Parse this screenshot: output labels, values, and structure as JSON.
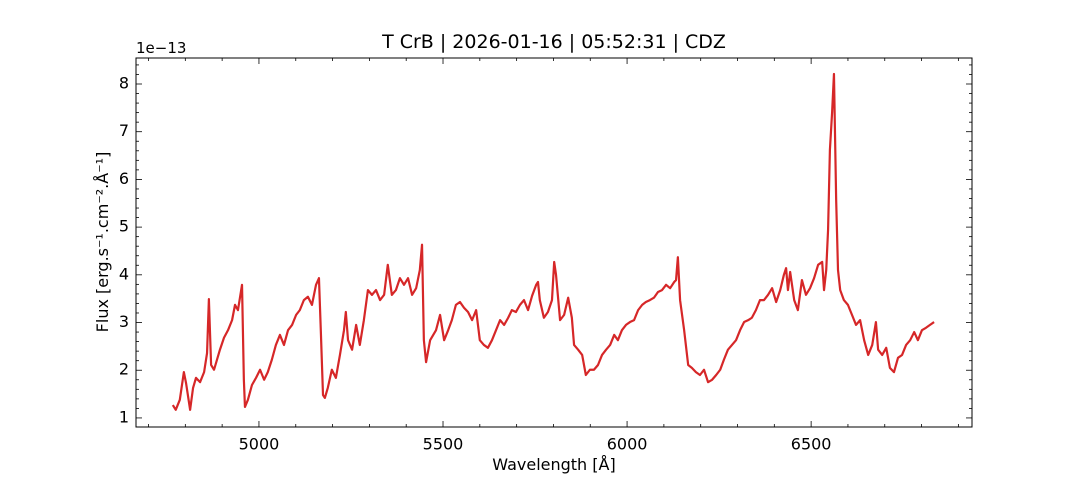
{
  "chart_data": {
    "type": "line",
    "title": "T CrB | 2026-01-16 | 05:52:31 | CDZ",
    "x_label": "Wavelength [Å]",
    "y_label": "Flux [erg.s⁻¹.cm⁻².Å⁻¹]",
    "y_offset_label": "1e−13",
    "xlim": [
      4666,
      6937
    ],
    "ylim": [
      0.81,
      8.545
    ],
    "xticks": [
      5000,
      5500,
      6000,
      6500
    ],
    "yticks": [
      1,
      2,
      3,
      4,
      5,
      6,
      7,
      8
    ],
    "xticks_minor": [
      4700,
      4800,
      4900,
      5100,
      5200,
      5300,
      5400,
      5600,
      5700,
      5800,
      5900,
      6100,
      6200,
      6300,
      6400,
      6600,
      6700,
      6800,
      6900
    ],
    "yticks_minor": [
      1.2,
      1.4,
      1.6,
      1.8,
      2.2,
      2.4,
      2.6,
      2.8,
      3.2,
      3.4,
      3.6,
      3.8,
      4.2,
      4.4,
      4.6,
      4.8,
      5.2,
      5.4,
      5.6,
      5.8,
      6.2,
      6.4,
      6.6,
      6.8,
      7.2,
      7.4,
      7.6,
      7.8,
      8.2,
      8.4
    ],
    "grid": false,
    "series": [
      {
        "color": "#d62728",
        "x": [
          4766,
          4774,
          4785,
          4796,
          4802,
          4813,
          4821,
          4829,
          4840,
          4851,
          4859,
          4864,
          4870,
          4878,
          4894,
          4905,
          4916,
          4927,
          4935,
          4943,
          4954,
          4959,
          4962,
          4970,
          4981,
          4992,
          5003,
          5014,
          5024,
          5035,
          5046,
          5057,
          5068,
          5079,
          5090,
          5101,
          5111,
          5122,
          5133,
          5144,
          5155,
          5163,
          5168,
          5174,
          5179,
          5187,
          5198,
          5209,
          5220,
          5231,
          5236,
          5242,
          5253,
          5264,
          5274,
          5285,
          5296,
          5307,
          5318,
          5329,
          5340,
          5350,
          5361,
          5372,
          5383,
          5394,
          5405,
          5416,
          5427,
          5437,
          5443,
          5448,
          5454,
          5465,
          5481,
          5492,
          5503,
          5514,
          5524,
          5535,
          5546,
          5557,
          5568,
          5579,
          5590,
          5600,
          5611,
          5622,
          5633,
          5644,
          5655,
          5666,
          5677,
          5687,
          5698,
          5709,
          5720,
          5731,
          5742,
          5753,
          5758,
          5763,
          5774,
          5785,
          5796,
          5802,
          5807,
          5818,
          5829,
          5840,
          5850,
          5856,
          5867,
          5878,
          5888,
          5899,
          5910,
          5921,
          5932,
          5943,
          5954,
          5965,
          5975,
          5986,
          5997,
          6008,
          6019,
          6030,
          6041,
          6051,
          6062,
          6073,
          6084,
          6095,
          6106,
          6117,
          6128,
          6133,
          6138,
          6144,
          6155,
          6166,
          6176,
          6187,
          6198,
          6209,
          6220,
          6231,
          6242,
          6253,
          6263,
          6274,
          6285,
          6296,
          6307,
          6318,
          6329,
          6339,
          6350,
          6361,
          6372,
          6383,
          6394,
          6405,
          6416,
          6426,
          6432,
          6437,
          6443,
          6454,
          6464,
          6475,
          6486,
          6497,
          6508,
          6519,
          6530,
          6535,
          6541,
          6546,
          6551,
          6557,
          6562,
          6568,
          6573,
          6579,
          6589,
          6600,
          6611,
          6622,
          6633,
          6644,
          6655,
          6666,
          6676,
          6682,
          6693,
          6704,
          6714,
          6725,
          6736,
          6747,
          6758,
          6769,
          6780,
          6790,
          6801,
          6812,
          6823,
          6834
        ],
        "values": [
          1.27,
          1.17,
          1.38,
          1.96,
          1.73,
          1.17,
          1.63,
          1.84,
          1.75,
          1.96,
          2.36,
          3.49,
          2.11,
          2.01,
          2.43,
          2.68,
          2.84,
          3.05,
          3.37,
          3.26,
          3.79,
          1.8,
          1.23,
          1.38,
          1.69,
          1.84,
          2.01,
          1.8,
          1.96,
          2.22,
          2.53,
          2.74,
          2.53,
          2.84,
          2.95,
          3.16,
          3.26,
          3.47,
          3.54,
          3.37,
          3.79,
          3.93,
          2.84,
          1.48,
          1.42,
          1.63,
          2.01,
          1.84,
          2.32,
          2.84,
          3.22,
          2.63,
          2.43,
          2.95,
          2.53,
          3.05,
          3.68,
          3.58,
          3.68,
          3.47,
          3.58,
          4.21,
          3.58,
          3.68,
          3.93,
          3.79,
          3.93,
          3.58,
          3.72,
          4.1,
          4.63,
          2.63,
          2.17,
          2.63,
          2.84,
          3.16,
          2.63,
          2.84,
          3.05,
          3.37,
          3.43,
          3.31,
          3.22,
          3.05,
          3.26,
          2.63,
          2.53,
          2.47,
          2.63,
          2.84,
          3.05,
          2.95,
          3.1,
          3.26,
          3.22,
          3.37,
          3.47,
          3.26,
          3.56,
          3.79,
          3.85,
          3.47,
          3.1,
          3.22,
          3.47,
          4.27,
          4.0,
          3.05,
          3.16,
          3.52,
          3.1,
          2.53,
          2.43,
          2.32,
          1.9,
          2.01,
          2.01,
          2.11,
          2.32,
          2.43,
          2.53,
          2.74,
          2.63,
          2.84,
          2.95,
          3.01,
          3.05,
          3.26,
          3.37,
          3.43,
          3.47,
          3.52,
          3.64,
          3.68,
          3.79,
          3.72,
          3.85,
          3.89,
          4.37,
          3.47,
          2.84,
          2.11,
          2.05,
          1.96,
          1.9,
          2.01,
          1.75,
          1.8,
          1.9,
          2.01,
          2.22,
          2.43,
          2.53,
          2.63,
          2.84,
          3.01,
          3.05,
          3.1,
          3.26,
          3.47,
          3.47,
          3.58,
          3.72,
          3.43,
          3.68,
          4.0,
          4.14,
          3.68,
          4.06,
          3.47,
          3.26,
          3.89,
          3.58,
          3.72,
          3.93,
          4.21,
          4.27,
          3.68,
          4.1,
          4.94,
          6.62,
          7.41,
          8.21,
          5.57,
          4.1,
          3.68,
          3.47,
          3.37,
          3.16,
          2.95,
          3.05,
          2.63,
          2.32,
          2.53,
          3.01,
          2.43,
          2.32,
          2.47,
          2.05,
          1.96,
          2.26,
          2.32,
          2.53,
          2.63,
          2.8,
          2.63,
          2.84,
          2.89,
          2.95,
          3.01
        ]
      }
    ]
  }
}
